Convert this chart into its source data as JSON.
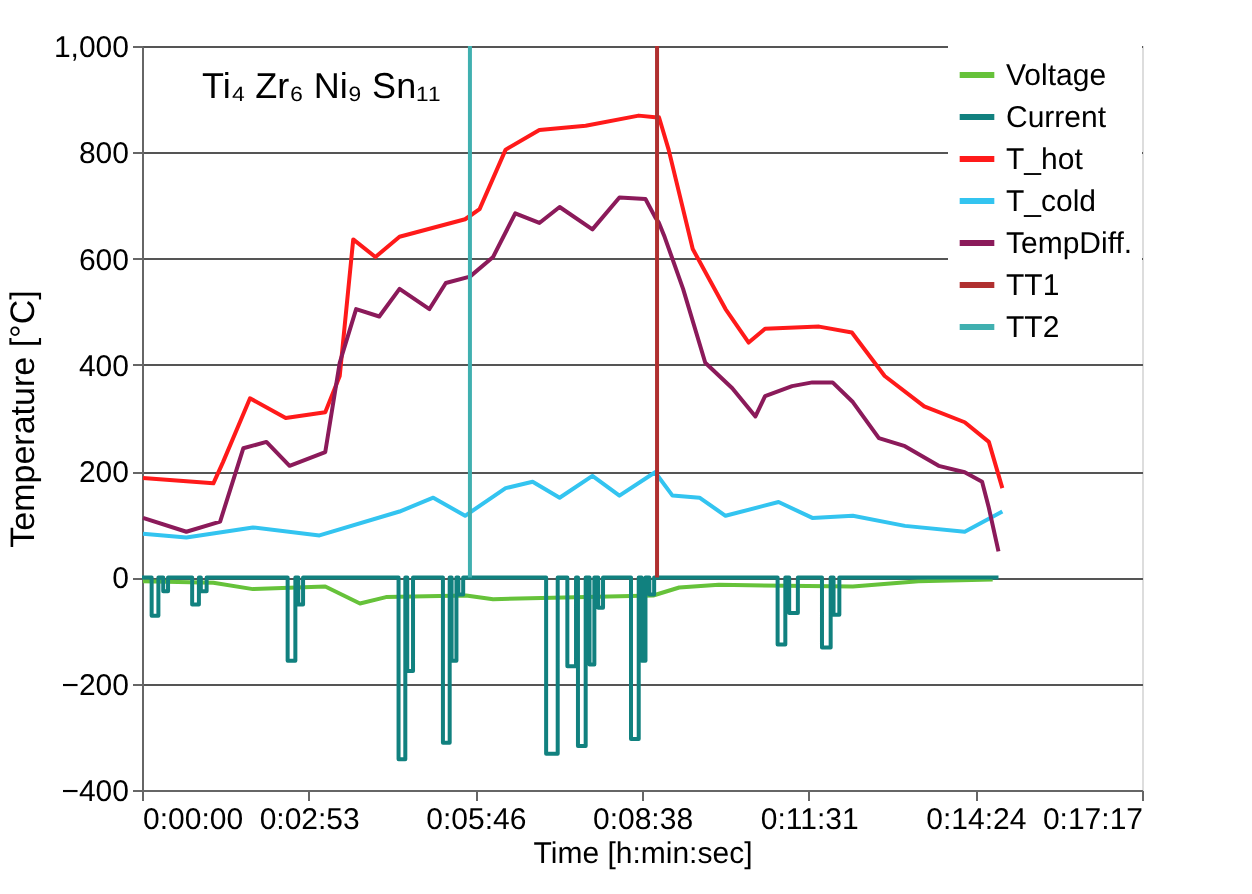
{
  "chart_data": {
    "type": "line",
    "xlabel": "Time [h:min:sec]",
    "ylabel": "Temperature [°C]",
    "annotations": [
      "Ti₄ Zr₆ Ni₉ Sn₁₁"
    ],
    "xlim": [
      0,
      1036.8
    ],
    "xticks": [
      {
        "value": 0,
        "label": "0:00:00"
      },
      {
        "value": 172.8,
        "label": "0:02:53"
      },
      {
        "value": 345.6,
        "label": "0:05:46"
      },
      {
        "value": 518.4,
        "label": "0:08:38"
      },
      {
        "value": 691.2,
        "label": "0:11:31"
      },
      {
        "value": 864,
        "label": "0:14:24"
      },
      {
        "value": 1036.8,
        "label": "0:17:17"
      }
    ],
    "ylim": [
      -400,
      1000
    ],
    "yticks": [
      -400,
      -200,
      0,
      200,
      400,
      600,
      800,
      {
        "value": 1000,
        "label": "1,000"
      }
    ],
    "grid": "y",
    "legend": "top right",
    "marker": "none",
    "line_style": "solid",
    "series": [
      {
        "name": "Voltage",
        "color": "#66c23a",
        "x": [
          1,
          74,
          115,
          190,
          226,
          253,
          336,
          364,
          530,
          557,
          598,
          737,
          805,
          882
        ],
        "values": [
          -7,
          -10,
          -22,
          -17,
          -49,
          -37,
          -34,
          -41,
          -34,
          -19,
          -14,
          -17,
          -7,
          -4
        ]
      },
      {
        "name": "Current",
        "color": "#11817f",
        "x": [
          0,
          10,
          10,
          17,
          17,
          22,
          22,
          27,
          27,
          52,
          52,
          59,
          59,
          61,
          61,
          67,
          67,
          151,
          151,
          159,
          159,
          162,
          162,
          167,
          167,
          266,
          266,
          273,
          273,
          275,
          275,
          281,
          281,
          312,
          312,
          319,
          319,
          321,
          321,
          326,
          326,
          328,
          328,
          333,
          333,
          419,
          419,
          431,
          431,
          441,
          441,
          450,
          450,
          452,
          452,
          460,
          460,
          464,
          464,
          469,
          469,
          473,
          473,
          478,
          478,
          507,
          507,
          515,
          515,
          518,
          518,
          522,
          522,
          526,
          526,
          531,
          531,
          659,
          659,
          667,
          667,
          671,
          671,
          680,
          680,
          705,
          705,
          714,
          714,
          717,
          717,
          723,
          723,
          888
        ],
        "values": [
          0,
          0,
          -72,
          -72,
          0,
          0,
          -26,
          -26,
          0,
          0,
          -51,
          -51,
          0,
          0,
          -26,
          -26,
          0,
          0,
          -157,
          -157,
          0,
          0,
          -51,
          -51,
          0,
          0,
          -342,
          -342,
          0,
          0,
          -176,
          -176,
          0,
          0,
          -311,
          -311,
          0,
          0,
          -157,
          -157,
          0,
          0,
          -32,
          -32,
          0,
          0,
          -332,
          -332,
          0,
          0,
          -167,
          -167,
          0,
          0,
          -317,
          -317,
          0,
          0,
          -164,
          -164,
          0,
          0,
          -57,
          -57,
          0,
          0,
          -304,
          -304,
          0,
          0,
          -157,
          -157,
          0,
          0,
          -32,
          -32,
          0,
          0,
          -126,
          -126,
          0,
          0,
          -67,
          -67,
          0,
          0,
          -132,
          -132,
          0,
          0,
          -70,
          -70,
          0,
          0
        ]
      },
      {
        "name": "T_hot",
        "color": "#ff1a1a",
        "x": [
          1,
          74,
          84,
          112,
          149,
          190,
          205,
          219,
          242,
          267,
          335,
          350,
          377,
          412,
          460,
          515,
          532,
          536,
          546,
          571,
          605,
          629,
          646,
          702,
          736,
          770,
          811,
          853,
          878,
          892
        ],
        "values": [
          187,
          177,
          217,
          337,
          300,
          311,
          379,
          636,
          603,
          641,
          674,
          693,
          805,
          842,
          850,
          869,
          866,
          866,
          805,
          618,
          505,
          442,
          468,
          472,
          461,
          379,
          322,
          292,
          255,
          168
        ]
      },
      {
        "name": "T_cold",
        "color": "#33c4f0",
        "x": [
          1,
          46,
          115,
          184,
          267,
          302,
          335,
          377,
          405,
          433,
          467,
          495,
          532,
          550,
          578,
          605,
          660,
          695,
          737,
          791,
          853,
          892
        ],
        "values": [
          82,
          75,
          94,
          79,
          124,
          150,
          116,
          168,
          180,
          150,
          191,
          154,
          198,
          154,
          150,
          116,
          142,
          112,
          116,
          97,
          86,
          124
        ]
      },
      {
        "name": "TempDiff.",
        "color": "#8b1a5a",
        "x": [
          1,
          46,
          81,
          105,
          129,
          153,
          190,
          205,
          222,
          246,
          267,
          298,
          315,
          340,
          364,
          387,
          412,
          433,
          467,
          495,
          522,
          532,
          536,
          542,
          561,
          584,
          612,
          636,
          646,
          674,
          695,
          716,
          737,
          764,
          791,
          826,
          853,
          871,
          878,
          888
        ],
        "values": [
          112,
          86,
          105,
          243,
          255,
          210,
          236,
          404,
          505,
          491,
          543,
          505,
          554,
          566,
          603,
          685,
          667,
          697,
          655,
          715,
          712,
          678,
          667,
          640,
          543,
          404,
          356,
          303,
          341,
          360,
          367,
          367,
          330,
          262,
          247,
          210,
          198,
          180,
          131,
          49
        ]
      },
      {
        "name": "TT1",
        "color": "#b03030",
        "x": [
          534,
          534
        ],
        "values": [
          0,
          1000
        ]
      },
      {
        "name": "TT2",
        "color": "#40b0b0",
        "x": [
          340,
          340
        ],
        "values": [
          0,
          1000
        ]
      }
    ]
  }
}
